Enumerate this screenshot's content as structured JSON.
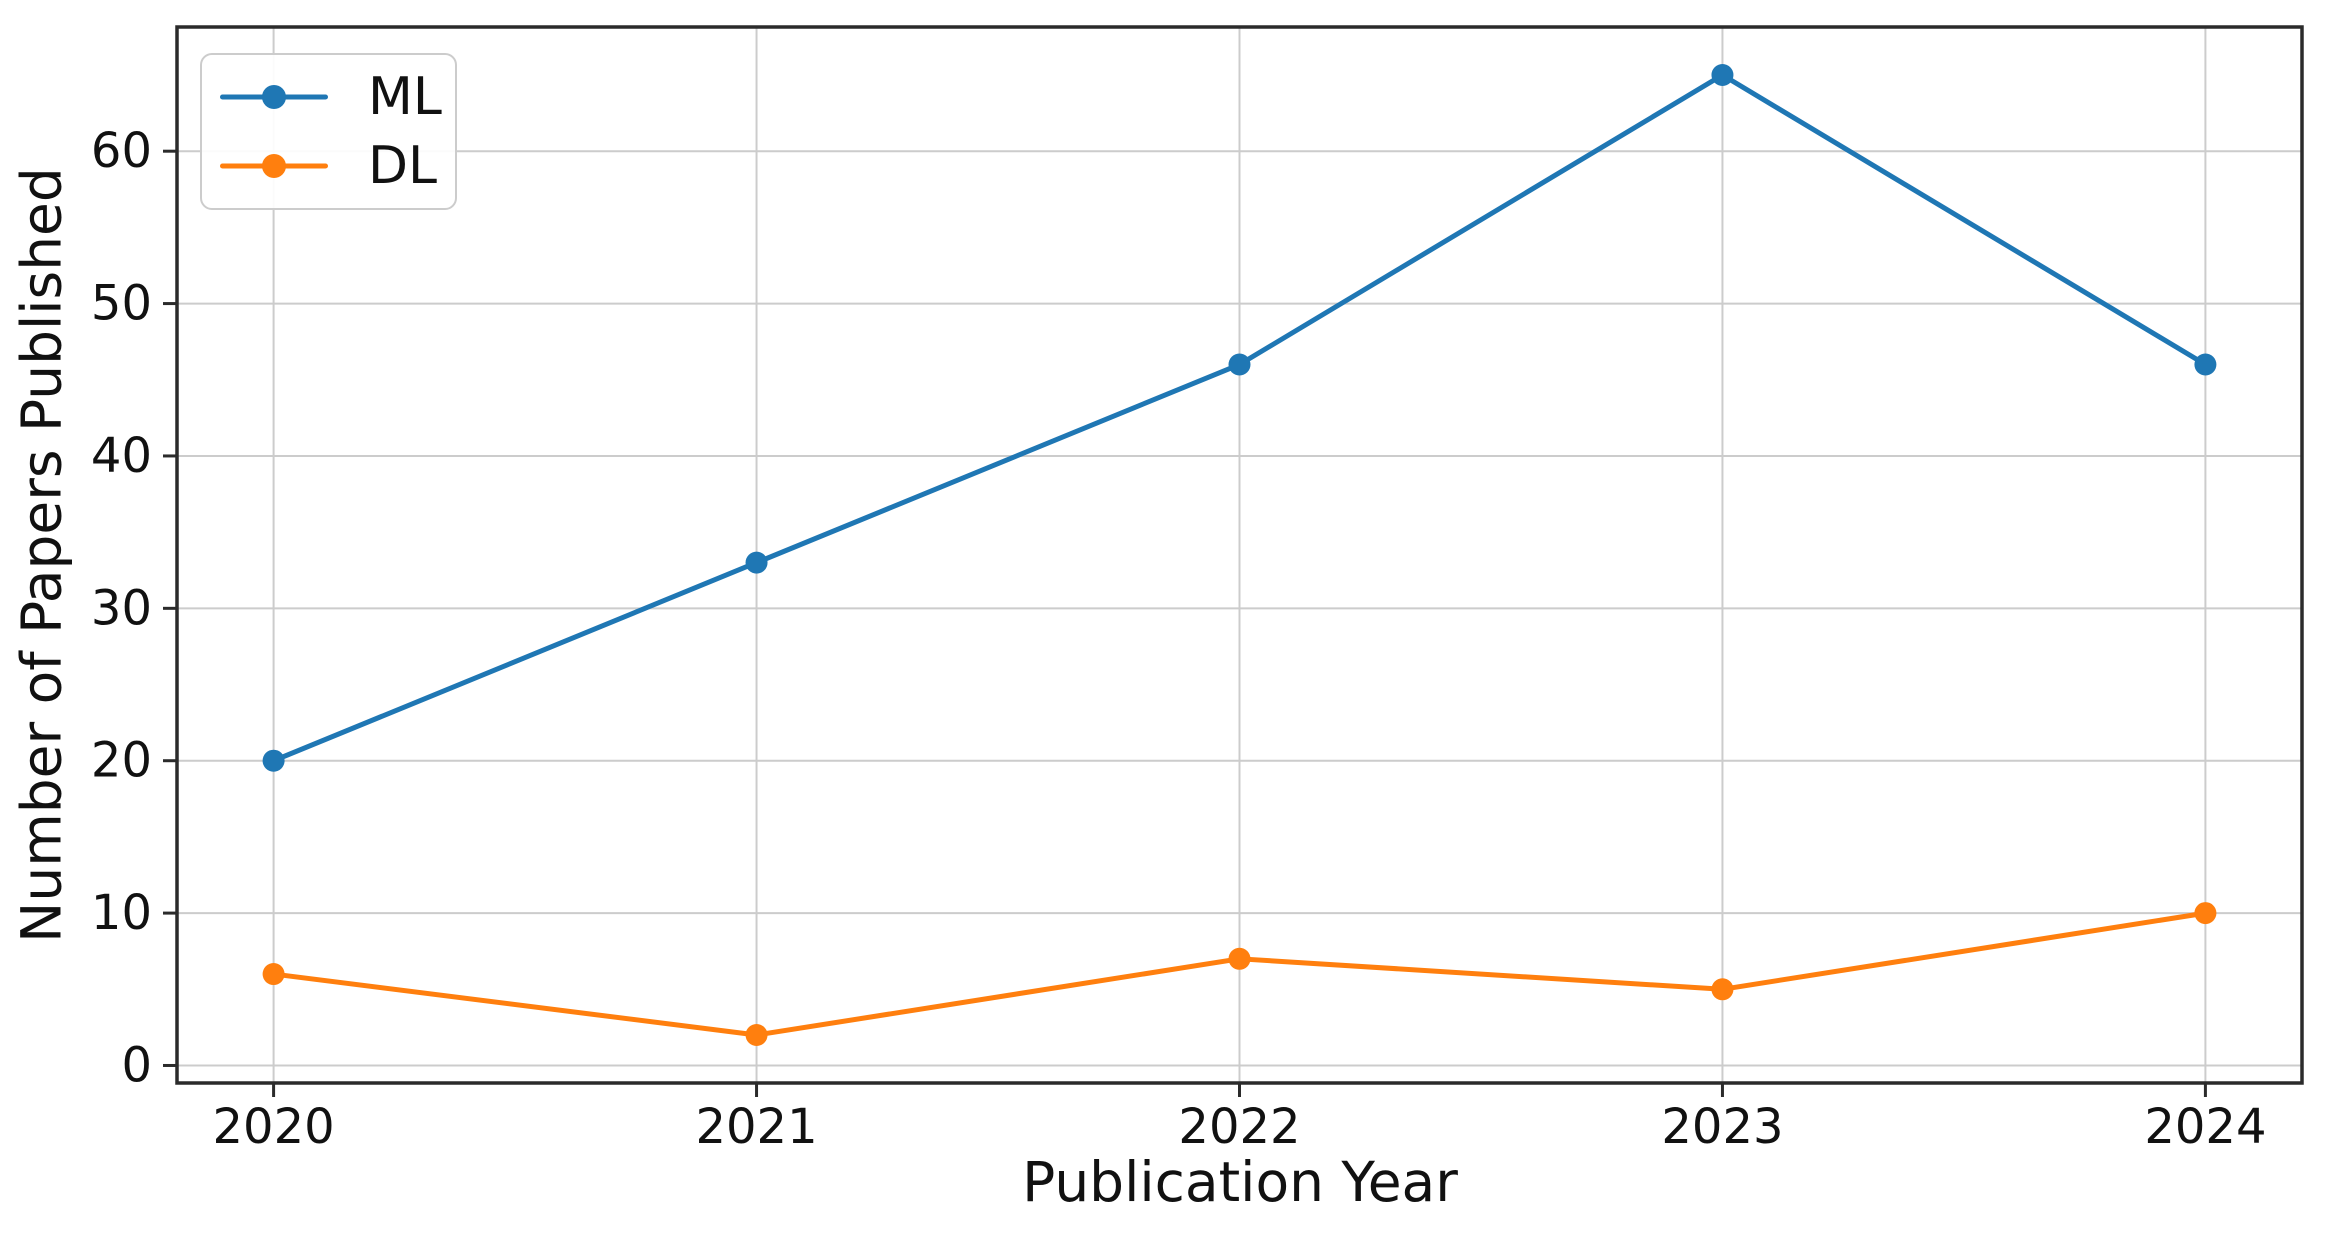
{
  "chart_data": {
    "type": "line",
    "title": "",
    "xlabel": "Publication Year",
    "ylabel": "Number of Papers Published",
    "categories": [
      "2020",
      "2021",
      "2022",
      "2023",
      "2024"
    ],
    "x": [
      2020,
      2021,
      2022,
      2023,
      2024
    ],
    "series": [
      {
        "name": "ML",
        "color": "#1f77b4",
        "values": [
          20,
          33,
          46,
          65,
          46
        ]
      },
      {
        "name": "DL",
        "color": "#ff7f0e",
        "values": [
          6,
          2,
          7,
          5,
          10
        ]
      }
    ],
    "yticks": [
      0,
      10,
      20,
      30,
      40,
      50,
      60
    ],
    "ylim": [
      -1.15,
      68.15
    ],
    "xlim": [
      2019.8,
      2024.2
    ],
    "grid": true,
    "grid_color": "#cccccc",
    "spine_color": "#2b2b2b",
    "tick_label_color": "#111111",
    "marker": "circle",
    "legend_position": "upper left"
  }
}
